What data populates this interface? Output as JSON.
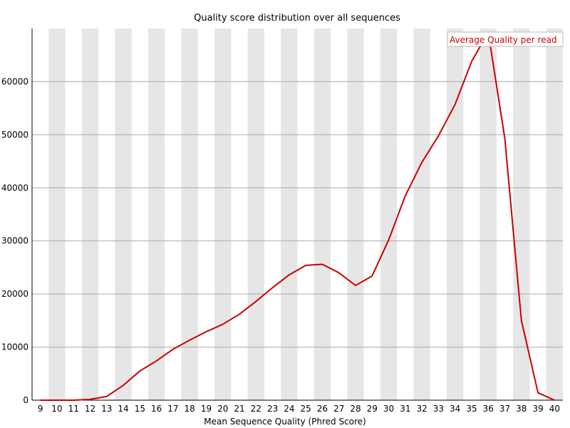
{
  "chart_data": {
    "type": "line",
    "title": "Quality score distribution over all sequences",
    "xlabel": "Mean Sequence Quality (Phred Score)",
    "ylabel": "",
    "x": [
      9,
      10,
      11,
      12,
      13,
      14,
      15,
      16,
      17,
      18,
      19,
      20,
      21,
      22,
      23,
      24,
      25,
      26,
      27,
      28,
      29,
      30,
      31,
      32,
      33,
      34,
      35,
      36,
      37,
      38,
      39,
      40
    ],
    "xlim": [
      8.5,
      40.5
    ],
    "ylim": [
      0,
      70000
    ],
    "yticks": [
      0,
      10000,
      20000,
      30000,
      40000,
      50000,
      60000
    ],
    "series": [
      {
        "name": "Average Quality per read",
        "color": "#cc0000",
        "values": [
          0,
          0,
          0,
          150,
          700,
          2800,
          5500,
          7400,
          9600,
          11300,
          12900,
          14300,
          16200,
          18600,
          21200,
          23600,
          25400,
          25600,
          24000,
          21600,
          23400,
          30200,
          38500,
          44800,
          49800,
          55700,
          63800,
          69300,
          49300,
          15000,
          1400,
          0
        ]
      }
    ],
    "grid": true,
    "legend_position": "top-right",
    "background_stripes": true,
    "stripe_color": "#e6e6e6",
    "gridline_color": "#aaaaaa"
  }
}
